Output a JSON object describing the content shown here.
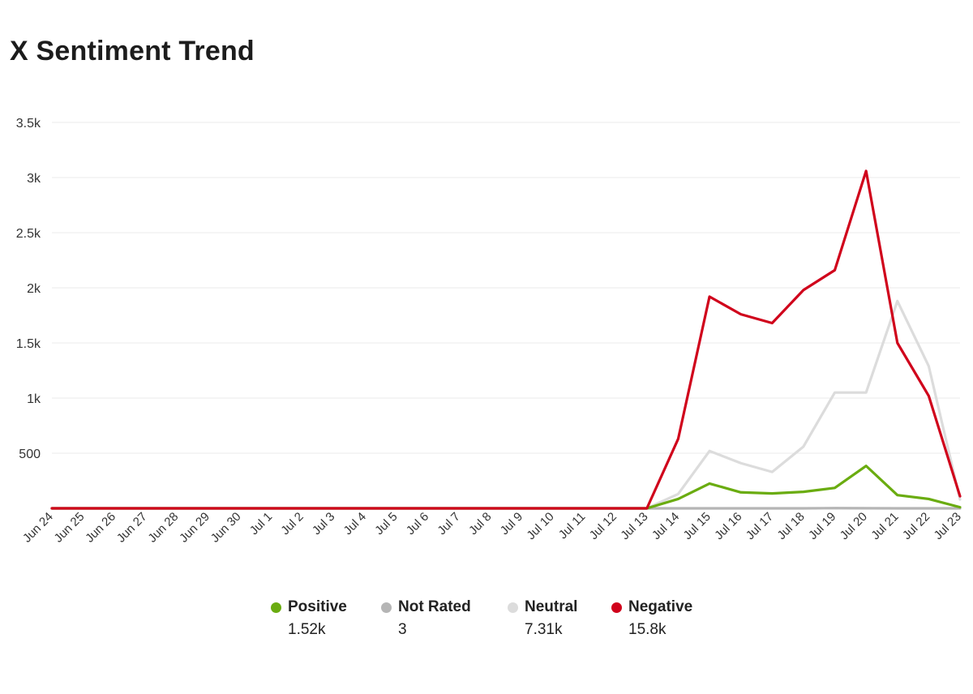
{
  "title": "X Sentiment Trend",
  "colors": {
    "positive": "#6aac10",
    "not_rated": "#b5b5b5",
    "neutral": "#dcdcdc",
    "negative": "#d0021b",
    "grid": "#ebebeb",
    "axis": "#c8c8c8"
  },
  "legend": [
    {
      "label": "Positive",
      "total": "1.52k",
      "color": "#6aac10"
    },
    {
      "label": "Not Rated",
      "total": "3",
      "color": "#b5b5b5"
    },
    {
      "label": "Neutral",
      "total": "7.31k",
      "color": "#dcdcdc"
    },
    {
      "label": "Negative",
      "total": "15.8k",
      "color": "#d0021b"
    }
  ],
  "chart_data": {
    "type": "line",
    "title": "X Sentiment Trend",
    "xlabel": "",
    "ylabel": "",
    "ylim": [
      0,
      3500
    ],
    "yticks": [
      500,
      1000,
      1500,
      2000,
      2500,
      3000,
      3500
    ],
    "ytick_labels": [
      "500",
      "1k",
      "1.5k",
      "2k",
      "2.5k",
      "3k",
      "3.5k"
    ],
    "grid": true,
    "legend_position": "bottom",
    "categories": [
      "Jun 24",
      "Jun 25",
      "Jun 26",
      "Jun 27",
      "Jun 28",
      "Jun 29",
      "Jun 30",
      "Jul 1",
      "Jul 2",
      "Jul 3",
      "Jul 4",
      "Jul 5",
      "Jul 6",
      "Jul 7",
      "Jul 8",
      "Jul 9",
      "Jul 10",
      "Jul 11",
      "Jul 12",
      "Jul 13",
      "Jul 14",
      "Jul 15",
      "Jul 16",
      "Jul 17",
      "Jul 18",
      "Jul 19",
      "Jul 20",
      "Jul 21",
      "Jul 22",
      "Jul 23"
    ],
    "series": [
      {
        "name": "Neutral",
        "color": "#dcdcdc",
        "values": [
          0,
          0,
          0,
          0,
          0,
          0,
          0,
          0,
          0,
          0,
          0,
          0,
          0,
          0,
          0,
          0,
          0,
          0,
          0,
          0,
          130,
          520,
          410,
          330,
          560,
          1050,
          1050,
          1880,
          1290,
          80
        ]
      },
      {
        "name": "Not Rated",
        "color": "#b5b5b5",
        "values": [
          0,
          0,
          0,
          0,
          0,
          0,
          0,
          0,
          0,
          0,
          0,
          0,
          0,
          0,
          0,
          0,
          0,
          0,
          0,
          0,
          0,
          0,
          0,
          0,
          0,
          2,
          1,
          0,
          0,
          0
        ]
      },
      {
        "name": "Positive",
        "color": "#6aac10",
        "values": [
          0,
          0,
          0,
          0,
          0,
          0,
          0,
          0,
          0,
          0,
          0,
          0,
          0,
          0,
          0,
          0,
          0,
          0,
          0,
          0,
          85,
          225,
          145,
          135,
          150,
          185,
          385,
          120,
          85,
          10
        ]
      },
      {
        "name": "Negative",
        "color": "#d0021b",
        "values": [
          0,
          0,
          0,
          0,
          0,
          0,
          0,
          0,
          0,
          0,
          0,
          0,
          0,
          0,
          0,
          0,
          0,
          0,
          0,
          0,
          630,
          1920,
          1760,
          1680,
          1980,
          2160,
          3060,
          1500,
          1020,
          110
        ]
      }
    ]
  }
}
